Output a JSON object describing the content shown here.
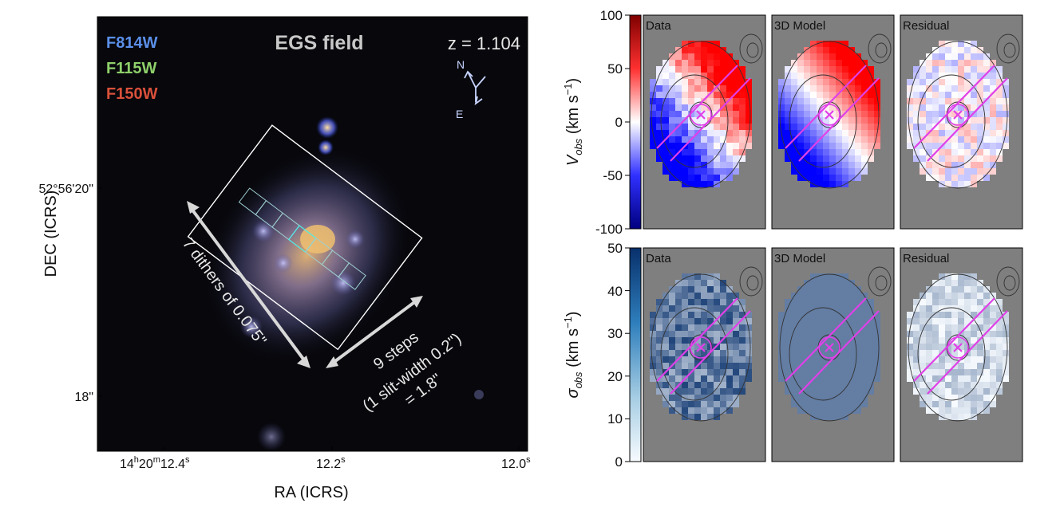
{
  "colors": {
    "F814W": "#5b8fe8",
    "F115W": "#8fd06a",
    "F150W": "#d9503a",
    "panel_bg": "#7f7f7f",
    "slit": "#e040e8"
  },
  "image_panel": {
    "field_title": "EGS field",
    "redshift": "z = 1.104",
    "compass_n": "N",
    "compass_e": "E",
    "filters": [
      "F814W",
      "F115W",
      "F150W"
    ],
    "dither_label": "7 dithers of 0.075\"",
    "steps_label_1": "9 steps",
    "steps_label_2": "(1 slit-width 0.2\")",
    "steps_label_3": "= 1.8\"",
    "xlabel": "RA (ICRS)",
    "ylabel": "DEC (ICRS)",
    "x_ticks": [
      "14h20m12.4s",
      "12.2s",
      "12.0s"
    ],
    "y_ticks": [
      "52°56'20\"",
      "18\""
    ]
  },
  "chart_data": [
    {
      "type": "heatmap",
      "row": "velocity",
      "colorbar_label": "V_obs (km s^-1)",
      "colorbar_range": [
        -100,
        100
      ],
      "colorbar_ticks": [
        100,
        50,
        0,
        -50,
        -100
      ],
      "colormap": "bwr",
      "panels": [
        "Data",
        "3D Model",
        "Residual"
      ]
    },
    {
      "type": "heatmap",
      "row": "dispersion",
      "colorbar_label": "σ_obs (km s^-1)",
      "colorbar_range": [
        0,
        50
      ],
      "colorbar_ticks": [
        50,
        40,
        30,
        20,
        10,
        0
      ],
      "colormap": "Blues",
      "panels": [
        "Data",
        "3D Model",
        "Residual"
      ]
    }
  ],
  "labels": {
    "v_axis_main": "V",
    "v_axis_sub": "obs",
    "v_axis_unit": " (km s",
    "v_axis_exp": "−1",
    "v_axis_close": ")",
    "s_axis_main": "σ",
    "s_axis_sub": "obs",
    "s_axis_unit": " (km s",
    "s_axis_exp": "−1",
    "s_axis_close": ")",
    "x_tick_1_main": "14",
    "x_tick_1_h": "h",
    "x_tick_1_min": "20",
    "x_tick_1_m": "m",
    "x_tick_1_sec": "12.4",
    "x_tick_1_s": "s",
    "x_tick_2_main": "12.2",
    "x_tick_2_s": "s",
    "x_tick_3_main": "12.0",
    "x_tick_3_s": "s",
    "y_tick_1": "52°56'20\"",
    "y_tick_2": "18\""
  }
}
